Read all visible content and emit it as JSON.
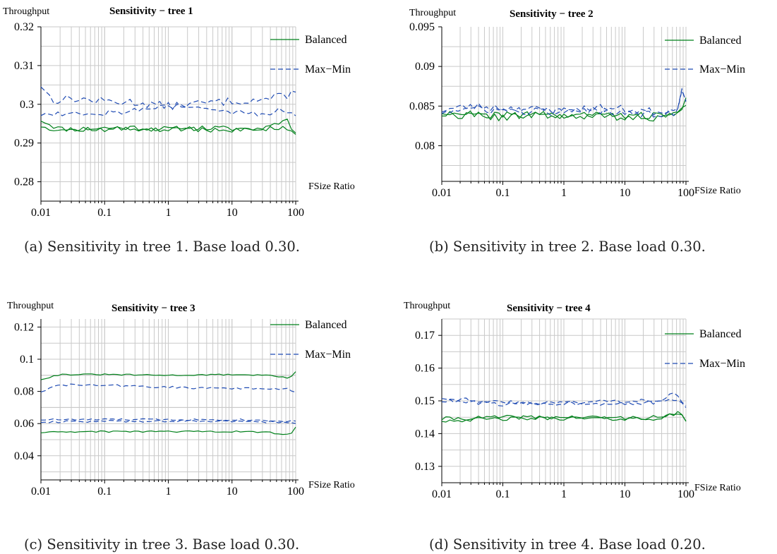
{
  "colors": {
    "balanced": "#00801a",
    "maxmin": "#1f4bb3",
    "grid": "#c9c9c9",
    "axis": "#000000"
  },
  "chart_data": [
    {
      "type": "line",
      "title": "Sensitivity − tree 1",
      "ylabel": "Throughput",
      "xlabel": "FSize Ratio",
      "xscale": "log",
      "xlim": [
        0.01,
        100
      ],
      "ylim": [
        0.275,
        0.32
      ],
      "xticks": [
        0.01,
        0.1,
        1,
        10,
        100
      ],
      "xtick_labels": [
        "0.01",
        "0.1",
        "1",
        "10",
        "100"
      ],
      "yticks": [
        0.28,
        0.29,
        0.3,
        0.31,
        0.32
      ],
      "ytick_labels": [
        "0.28",
        "0.29",
        "0.3",
        "0.31",
        "0.32"
      ],
      "grid": true,
      "legend": "top-right",
      "legend_entries": [
        "Balanced",
        "Max−Min"
      ],
      "caption": "(a) Sensitivity in tree 1. Base load 0.30.",
      "series": [
        {
          "name": "Balanced",
          "style": "solid",
          "color_key": "balanced",
          "base": [
            [
              0.01,
              0.296
            ],
            [
              0.02,
              0.2936
            ],
            [
              0.05,
              0.2937
            ],
            [
              0.1,
              0.2939
            ],
            [
              0.3,
              0.294
            ],
            [
              1,
              0.2936
            ],
            [
              3,
              0.2939
            ],
            [
              10,
              0.2937
            ],
            [
              30,
              0.2937
            ],
            [
              60,
              0.2942
            ],
            [
              100,
              0.2925
            ]
          ],
          "noise": 0.0007,
          "seed": 11
        },
        {
          "name": "Balanced",
          "style": "solid",
          "color_key": "balanced",
          "base": [
            [
              0.01,
              0.2945
            ],
            [
              0.02,
              0.2933
            ],
            [
              0.05,
              0.2934
            ],
            [
              0.1,
              0.2935
            ],
            [
              0.3,
              0.2937
            ],
            [
              1,
              0.2933
            ],
            [
              3,
              0.2936
            ],
            [
              10,
              0.2933
            ],
            [
              30,
              0.2934
            ],
            [
              70,
              0.2965
            ],
            [
              100,
              0.292
            ]
          ],
          "noise": 0.0007,
          "seed": 12
        },
        {
          "name": "Max−Min",
          "style": "dashed",
          "color_key": "maxmin",
          "base": [
            [
              0.01,
              0.305
            ],
            [
              0.015,
              0.301
            ],
            [
              0.03,
              0.3015
            ],
            [
              0.1,
              0.3008
            ],
            [
              0.3,
              0.3005
            ],
            [
              1,
              0.2995
            ],
            [
              3,
              0.3002
            ],
            [
              10,
              0.3008
            ],
            [
              30,
              0.3012
            ],
            [
              60,
              0.302
            ],
            [
              100,
              0.303
            ]
          ],
          "noise": 0.001,
          "seed": 13
        },
        {
          "name": "Max−Min",
          "style": "dashed",
          "color_key": "maxmin",
          "base": [
            [
              0.01,
              0.2975
            ],
            [
              0.03,
              0.2978
            ],
            [
              0.1,
              0.2978
            ],
            [
              0.3,
              0.2985
            ],
            [
              1,
              0.2995
            ],
            [
              3,
              0.299
            ],
            [
              10,
              0.298
            ],
            [
              30,
              0.2974
            ],
            [
              60,
              0.2985
            ],
            [
              100,
              0.2975
            ]
          ],
          "noise": 0.0008,
          "seed": 14
        }
      ]
    },
    {
      "type": "line",
      "title": "Sensitivity − tree 2",
      "ylabel": "Throughput",
      "xlabel": "FSize Ratio",
      "xscale": "log",
      "xlim": [
        0.01,
        100
      ],
      "ylim": [
        0.0755,
        0.095
      ],
      "xticks": [
        0.01,
        0.1,
        1,
        10,
        100
      ],
      "xtick_labels": [
        "0.01",
        "0.1",
        "1",
        "10",
        "100"
      ],
      "yticks": [
        0.08,
        0.085,
        0.09,
        0.095
      ],
      "ytick_labels": [
        "0.08",
        "0.085",
        "0.09",
        "0.095"
      ],
      "grid": true,
      "legend": "top-right",
      "legend_entries": [
        "Balanced",
        "Max−Min"
      ],
      "caption": "(b) Sensitivity in tree 2. Base load 0.30.",
      "series": [
        {
          "name": "Balanced",
          "style": "solid",
          "color_key": "balanced",
          "base": [
            [
              0.01,
              0.0843
            ],
            [
              0.03,
              0.084
            ],
            [
              0.1,
              0.0838
            ],
            [
              0.3,
              0.084
            ],
            [
              1,
              0.0838
            ],
            [
              3,
              0.0839
            ],
            [
              10,
              0.0838
            ],
            [
              30,
              0.0837
            ],
            [
              70,
              0.084
            ],
            [
              100,
              0.0858
            ]
          ],
          "noise": 0.0005,
          "seed": 21
        },
        {
          "name": "Balanced",
          "style": "solid",
          "color_key": "balanced",
          "base": [
            [
              0.01,
              0.084
            ],
            [
              0.03,
              0.0838
            ],
            [
              0.1,
              0.0836
            ],
            [
              0.3,
              0.0839
            ],
            [
              1,
              0.0837
            ],
            [
              3,
              0.0838
            ],
            [
              10,
              0.0836
            ],
            [
              30,
              0.0836
            ],
            [
              70,
              0.0838
            ],
            [
              100,
              0.0852
            ]
          ],
          "noise": 0.0005,
          "seed": 22
        },
        {
          "name": "Max−Min",
          "style": "dashed",
          "color_key": "maxmin",
          "base": [
            [
              0.01,
              0.0845
            ],
            [
              0.03,
              0.085
            ],
            [
              0.1,
              0.0848
            ],
            [
              0.3,
              0.0846
            ],
            [
              1,
              0.0844
            ],
            [
              3,
              0.0848
            ],
            [
              10,
              0.0846
            ],
            [
              30,
              0.0843
            ],
            [
              70,
              0.0845
            ],
            [
              90,
              0.088
            ],
            [
              100,
              0.086
            ]
          ],
          "noise": 0.0005,
          "seed": 23
        },
        {
          "name": "Max−Min",
          "style": "dashed",
          "color_key": "maxmin",
          "base": [
            [
              0.01,
              0.0843
            ],
            [
              0.03,
              0.0846
            ],
            [
              0.1,
              0.0845
            ],
            [
              0.3,
              0.0843
            ],
            [
              1,
              0.0842
            ],
            [
              3,
              0.0845
            ],
            [
              10,
              0.0843
            ],
            [
              30,
              0.084
            ],
            [
              70,
              0.0843
            ],
            [
              90,
              0.087
            ],
            [
              100,
              0.0855
            ]
          ],
          "noise": 0.0005,
          "seed": 24
        }
      ]
    },
    {
      "type": "line",
      "title": "Sensitivity − tree 3",
      "ylabel": "Throughput",
      "xlabel": "FSize Ratio",
      "xscale": "log",
      "xlim": [
        0.01,
        100
      ],
      "ylim": [
        0.025,
        0.125
      ],
      "xticks": [
        0.01,
        0.1,
        1,
        10,
        100
      ],
      "xtick_labels": [
        "0.01",
        "0.1",
        "1",
        "10",
        "100"
      ],
      "yticks": [
        0.04,
        0.06,
        0.08,
        0.1,
        0.12
      ],
      "ytick_labels": [
        "0.04",
        "0.06",
        "0.08",
        "0.1",
        "0.12"
      ],
      "grid": true,
      "legend": "top-right",
      "legend_entries": [
        "Balanced",
        "Max−Min"
      ],
      "caption": "(c) Sensitivity in tree 3. Base load 0.30.",
      "series": [
        {
          "name": "Balanced",
          "style": "solid",
          "color_key": "balanced",
          "base": [
            [
              0.01,
              0.0875
            ],
            [
              0.02,
              0.0905
            ],
            [
              0.1,
              0.0905
            ],
            [
              1,
              0.09
            ],
            [
              10,
              0.0905
            ],
            [
              40,
              0.09
            ],
            [
              80,
              0.088
            ],
            [
              100,
              0.0925
            ]
          ],
          "noise": 0.0004,
          "seed": 31
        },
        {
          "name": "Max−Min",
          "style": "dashed",
          "color_key": "maxmin",
          "base": [
            [
              0.01,
              0.08
            ],
            [
              0.02,
              0.084
            ],
            [
              0.1,
              0.0838
            ],
            [
              1,
              0.0825
            ],
            [
              10,
              0.082
            ],
            [
              40,
              0.0815
            ],
            [
              80,
              0.0815
            ],
            [
              100,
              0.079
            ]
          ],
          "noise": 0.0007,
          "seed": 32
        },
        {
          "name": "Max−Min",
          "style": "dashed",
          "color_key": "maxmin",
          "base": [
            [
              0.01,
              0.0625
            ],
            [
              0.1,
              0.0625
            ],
            [
              1,
              0.0625
            ],
            [
              10,
              0.0625
            ],
            [
              40,
              0.062
            ],
            [
              100,
              0.0615
            ]
          ],
          "noise": 0.0006,
          "seed": 33
        },
        {
          "name": "Max−Min",
          "style": "dashed",
          "color_key": "maxmin",
          "base": [
            [
              0.01,
              0.061
            ],
            [
              0.1,
              0.0615
            ],
            [
              1,
              0.0615
            ],
            [
              10,
              0.0615
            ],
            [
              40,
              0.061
            ],
            [
              100,
              0.0605
            ]
          ],
          "noise": 0.0006,
          "seed": 34
        },
        {
          "name": "Balanced",
          "style": "solid",
          "color_key": "balanced",
          "base": [
            [
              0.01,
              0.0545
            ],
            [
              0.1,
              0.055
            ],
            [
              1,
              0.055
            ],
            [
              10,
              0.055
            ],
            [
              40,
              0.0545
            ],
            [
              80,
              0.053
            ],
            [
              100,
              0.0575
            ]
          ],
          "noise": 0.0005,
          "seed": 35
        }
      ]
    },
    {
      "type": "line",
      "title": "Sensitivity − tree 4",
      "ylabel": "Throughput",
      "xlabel": "FSize Ratio",
      "xscale": "log",
      "xlim": [
        0.01,
        100
      ],
      "ylim": [
        0.125,
        0.175
      ],
      "xticks": [
        0.01,
        0.1,
        1,
        10,
        100
      ],
      "xtick_labels": [
        "0.01",
        "0.1",
        "1",
        "10",
        "100"
      ],
      "yticks": [
        0.13,
        0.14,
        0.15,
        0.16,
        0.17
      ],
      "ytick_labels": [
        "0.13",
        "0.14",
        "0.15",
        "0.16",
        "0.17"
      ],
      "grid": true,
      "legend": "top-right",
      "legend_entries": [
        "Balanced",
        "Max−Min"
      ],
      "caption": "(d) Sensitivity in tree 4. Base load 0.20.",
      "series": [
        {
          "name": "Balanced",
          "style": "solid",
          "color_key": "balanced",
          "base": [
            [
              0.01,
              0.1445
            ],
            [
              0.1,
              0.145
            ],
            [
              1,
              0.145
            ],
            [
              10,
              0.1448
            ],
            [
              40,
              0.145
            ],
            [
              80,
              0.146
            ],
            [
              100,
              0.1435
            ]
          ],
          "noise": 0.0006,
          "seed": 41
        },
        {
          "name": "Balanced",
          "style": "solid",
          "color_key": "balanced",
          "base": [
            [
              0.01,
              0.144
            ],
            [
              0.1,
              0.1445
            ],
            [
              1,
              0.1447
            ],
            [
              10,
              0.1445
            ],
            [
              40,
              0.1447
            ],
            [
              80,
              0.1465
            ],
            [
              100,
              0.144
            ]
          ],
          "noise": 0.0006,
          "seed": 42
        },
        {
          "name": "Max−Min",
          "style": "dashed",
          "color_key": "maxmin",
          "base": [
            [
              0.01,
              0.151
            ],
            [
              0.1,
              0.1495
            ],
            [
              1,
              0.1495
            ],
            [
              10,
              0.15
            ],
            [
              40,
              0.1505
            ],
            [
              70,
              0.1525
            ],
            [
              100,
              0.148
            ]
          ],
          "noise": 0.0006,
          "seed": 43
        },
        {
          "name": "Max−Min",
          "style": "dashed",
          "color_key": "maxmin",
          "base": [
            [
              0.01,
              0.15
            ],
            [
              0.1,
              0.149
            ],
            [
              1,
              0.1492
            ],
            [
              10,
              0.1493
            ],
            [
              40,
              0.1495
            ],
            [
              70,
              0.1505
            ],
            [
              100,
              0.1478
            ]
          ],
          "noise": 0.0006,
          "seed": 44
        }
      ]
    }
  ]
}
